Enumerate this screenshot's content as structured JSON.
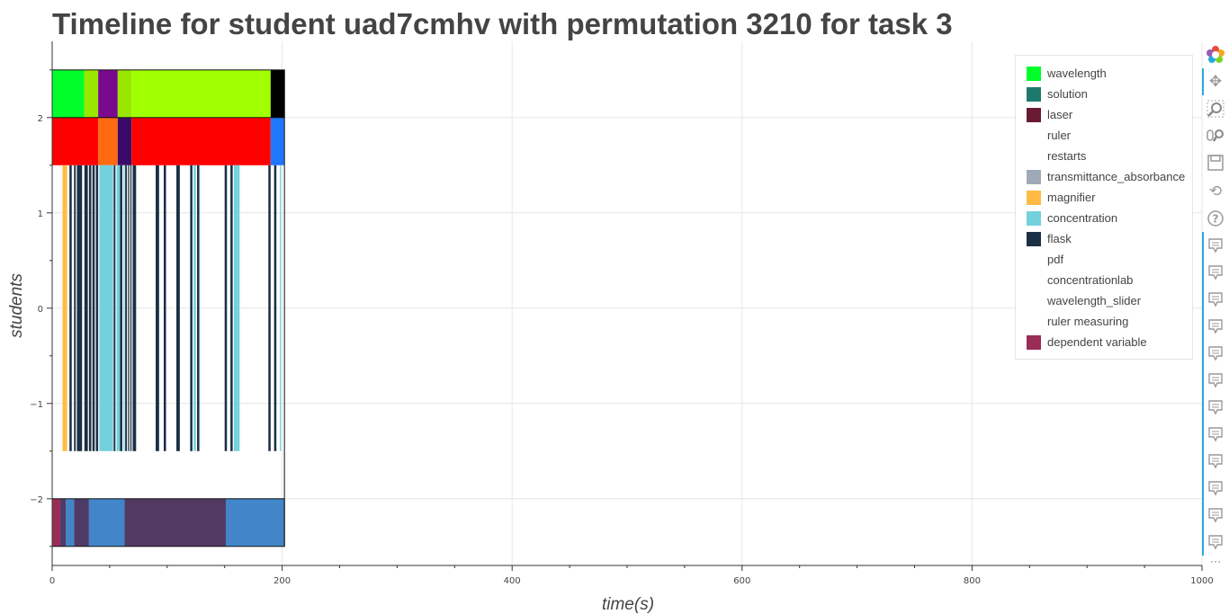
{
  "chart_data": {
    "type": "timeline",
    "title": "Timeline for student uad7cmhv with permutation 3210 for task 3",
    "xlabel": "time(s)",
    "ylabel": "students",
    "xlim": [
      0,
      1000
    ],
    "ylim": [
      -2.7,
      2.8
    ],
    "x_ticks": [
      0,
      200,
      400,
      600,
      800,
      1000
    ],
    "y_ticks": [
      -2,
      -1,
      0,
      1,
      2
    ],
    "grid": true,
    "legend_position": "top-right",
    "legend": [
      {
        "name": "wavelength",
        "color": "#00ff2a"
      },
      {
        "name": "solution",
        "color": "#1f7a6e"
      },
      {
        "name": "laser",
        "color": "#6b1a33"
      },
      {
        "name": "ruler",
        "color": "#ffffff"
      },
      {
        "name": "restarts",
        "color": "#ffffff"
      },
      {
        "name": "transmittance_absorbance",
        "color": "#9fa9b8"
      },
      {
        "name": "magnifier",
        "color": "#ffbb44"
      },
      {
        "name": "concentration",
        "color": "#72d1dc"
      },
      {
        "name": "flask",
        "color": "#1b2f45"
      },
      {
        "name": "pdf",
        "color": "#ffffff"
      },
      {
        "name": "concentrationlab",
        "color": "#ffffff"
      },
      {
        "name": "wavelength_slider",
        "color": "#ffffff"
      },
      {
        "name": "ruler measuring",
        "color": "#ffffff"
      },
      {
        "name": "dependent variable",
        "color": "#992d55"
      }
    ],
    "rows": [
      {
        "y_range": [
          2,
          2.5
        ],
        "segments": [
          {
            "start": 0,
            "end": 28,
            "color": "#00ff2a"
          },
          {
            "start": 28,
            "end": 40,
            "color": "#99e600"
          },
          {
            "start": 40,
            "end": 57,
            "color": "#7a0a8c"
          },
          {
            "start": 57,
            "end": 69,
            "color": "#99e600"
          },
          {
            "start": 69,
            "end": 190,
            "color": "#a0ff00"
          },
          {
            "start": 190,
            "end": 202,
            "color": "#000000"
          }
        ]
      },
      {
        "y_range": [
          1.5,
          2
        ],
        "segments": [
          {
            "start": 0,
            "end": 40,
            "color": "#ff0000"
          },
          {
            "start": 40,
            "end": 57,
            "color": "#ff6a10"
          },
          {
            "start": 57,
            "end": 69,
            "color": "#3a0a6b"
          },
          {
            "start": 69,
            "end": 190,
            "color": "#ff0000"
          },
          {
            "start": 190,
            "end": 202,
            "color": "#1f77ff"
          }
        ]
      },
      {
        "y_range": [
          -1.5,
          1.5
        ],
        "segments": [
          {
            "start": 9,
            "end": 13,
            "color": "#ffbb44"
          },
          {
            "start": 15,
            "end": 17,
            "color": "#1b2f45"
          },
          {
            "start": 19,
            "end": 20.5,
            "color": "#1b2f45"
          },
          {
            "start": 21.5,
            "end": 26,
            "color": "#1b2f45"
          },
          {
            "start": 28,
            "end": 31,
            "color": "#1b2f45"
          },
          {
            "start": 32,
            "end": 34,
            "color": "#1b2f45"
          },
          {
            "start": 35,
            "end": 37,
            "color": "#1b2f45"
          },
          {
            "start": 38,
            "end": 40,
            "color": "#1b2f45"
          },
          {
            "start": 41,
            "end": 53,
            "color": "#72d1dc"
          },
          {
            "start": 53.5,
            "end": 55,
            "color": "#1b2f45"
          },
          {
            "start": 56,
            "end": 59,
            "color": "#72d1dc"
          },
          {
            "start": 59,
            "end": 61,
            "color": "#1b2f45"
          },
          {
            "start": 62,
            "end": 63,
            "color": "#72d1dc"
          },
          {
            "start": 63.5,
            "end": 65,
            "color": "#1b2f45"
          },
          {
            "start": 66,
            "end": 67,
            "color": "#1b2f45"
          },
          {
            "start": 68,
            "end": 69,
            "color": "#1b2f45"
          },
          {
            "start": 70,
            "end": 73,
            "color": "#1b2f45"
          },
          {
            "start": 90,
            "end": 93,
            "color": "#1b2f45"
          },
          {
            "start": 97,
            "end": 99,
            "color": "#1b2f45"
          },
          {
            "start": 108,
            "end": 111,
            "color": "#1b2f45"
          },
          {
            "start": 120,
            "end": 122,
            "color": "#1b2f45"
          },
          {
            "start": 123,
            "end": 125,
            "color": "#72d1dc"
          },
          {
            "start": 126,
            "end": 128,
            "color": "#1b2f45"
          },
          {
            "start": 150,
            "end": 152,
            "color": "#1b2f45"
          },
          {
            "start": 155,
            "end": 157,
            "color": "#1b2f45"
          },
          {
            "start": 158,
            "end": 161,
            "color": "#72d1dc"
          },
          {
            "start": 161,
            "end": 163,
            "color": "#72d1dc"
          },
          {
            "start": 188,
            "end": 190,
            "color": "#1b2f45"
          },
          {
            "start": 193,
            "end": 195,
            "color": "#1b2f45"
          },
          {
            "start": 198,
            "end": 199,
            "color": "#72d1dc"
          }
        ]
      },
      {
        "y_range": [
          -2.5,
          -2
        ],
        "segments": [
          {
            "start": 0,
            "end": 7,
            "color": "#992d55"
          },
          {
            "start": 7,
            "end": 12,
            "color": "#4e3b68"
          },
          {
            "start": 12,
            "end": 19,
            "color": "#4286c9"
          },
          {
            "start": 19,
            "end": 32,
            "color": "#4e3b68"
          },
          {
            "start": 32,
            "end": 63,
            "color": "#4286c9"
          },
          {
            "start": 63,
            "end": 151,
            "color": "#523a62"
          },
          {
            "start": 151,
            "end": 202,
            "color": "#4286c9"
          }
        ]
      }
    ]
  },
  "toolbar": {
    "tools": [
      "bokeh-logo-icon",
      "pan-icon",
      "box-zoom-icon",
      "wheel-zoom-icon",
      "save-icon",
      "reset-icon",
      "help-icon"
    ],
    "hover_tool_count": 12,
    "more_label": "⋯"
  }
}
